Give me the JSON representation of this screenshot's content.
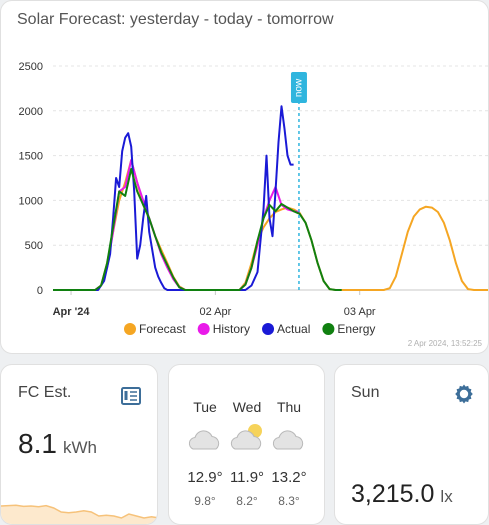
{
  "solar_card": {
    "title": "Solar Forecast: yesterday - today - tomorrow",
    "updated": "2 Apr 2024, 13:52:25",
    "now_label": "now"
  },
  "fc_card": {
    "title": "FC Est.",
    "icon": "calendar-grid-icon",
    "value": "8.1",
    "unit": "kWh",
    "trend": [
      0.45,
      0.46,
      0.47,
      0.44,
      0.45,
      0.43,
      0.46,
      0.4,
      0.3,
      0.28,
      0.3,
      0.33,
      0.3,
      0.2,
      0.22,
      0.2,
      0.15,
      0.25,
      0.2,
      0.15,
      0.18,
      0.15
    ]
  },
  "weather_card": {
    "days": [
      {
        "day": "Tue",
        "icon": "cloudy-icon",
        "high": "12.9°",
        "low": "9.8°"
      },
      {
        "day": "Wed",
        "icon": "partly-cloudy-icon",
        "high": "11.9°",
        "low": "8.2°"
      },
      {
        "day": "Thu",
        "icon": "cloudy-icon",
        "high": "13.2°",
        "low": "8.3°"
      }
    ]
  },
  "sun_card": {
    "title": "Sun",
    "icon": "gear-icon",
    "value": "3,215.0",
    "unit": "lx"
  },
  "chart_data": {
    "type": "line",
    "title": "Solar Forecast: yesterday - today - tomorrow",
    "x_unit": "hours since 1 Apr 2024 00:00",
    "x_ticks": [
      {
        "label": "Apr '24",
        "x": 0,
        "bold": true
      },
      {
        "label": "02 Apr",
        "x": 24,
        "bold": false
      },
      {
        "label": "03 Apr",
        "x": 48,
        "bold": false
      }
    ],
    "xlim": [
      -3,
      69.5
    ],
    "ylim": [
      0,
      2500
    ],
    "y_ticks": [
      0,
      500,
      1000,
      1500,
      2000,
      2500
    ],
    "now_x": 37.9,
    "grid": true,
    "legend_position": "bottom",
    "series": [
      {
        "name": "Forecast",
        "color": "#f5a623",
        "x": [
          -3,
          4,
          5,
          6,
          7,
          8,
          9,
          10,
          11,
          12,
          13,
          14,
          15,
          16,
          17,
          18,
          19,
          20,
          28,
          29,
          30,
          31,
          32,
          33,
          34,
          35,
          36,
          37,
          38,
          39,
          40,
          41,
          42,
          43,
          44,
          52,
          53,
          54,
          55,
          56,
          57,
          58,
          59,
          60,
          61,
          62,
          63,
          64,
          65,
          66,
          67,
          68,
          69.5
        ],
        "y": [
          0,
          0,
          50,
          300,
          650,
          1000,
          1200,
          1450,
          1200,
          950,
          800,
          600,
          450,
          300,
          150,
          40,
          0,
          0,
          0,
          80,
          300,
          550,
          700,
          800,
          870,
          900,
          920,
          900,
          860,
          750,
          550,
          300,
          100,
          10,
          0,
          0,
          20,
          150,
          400,
          650,
          820,
          900,
          930,
          920,
          870,
          750,
          550,
          300,
          100,
          10,
          0,
          0,
          0
        ]
      },
      {
        "name": "History",
        "color": "#e91ae9",
        "x": [
          -3,
          4,
          5,
          6,
          7,
          8,
          9,
          10,
          11,
          12,
          13,
          14,
          15,
          16,
          17,
          18,
          19,
          20,
          28,
          29,
          30,
          31,
          32,
          33,
          34,
          35,
          36,
          37,
          38
        ],
        "y": [
          0,
          0,
          50,
          250,
          650,
          1100,
          1150,
          1450,
          1200,
          1000,
          800,
          600,
          400,
          250,
          120,
          30,
          0,
          0,
          0,
          60,
          250,
          500,
          800,
          1000,
          1150,
          950,
          900,
          880,
          870
        ]
      },
      {
        "name": "Actual",
        "color": "#1a1ad6",
        "x": [
          -3,
          4.5,
          5.5,
          6.5,
          7,
          7.5,
          8,
          8.5,
          9,
          9.5,
          10,
          10.5,
          11,
          11.5,
          12,
          12.5,
          13,
          13.5,
          14,
          14.5,
          15,
          15.5,
          16,
          17,
          18,
          19,
          20,
          29,
          30,
          31,
          32,
          32.5,
          33,
          33.5,
          34,
          34.5,
          35,
          35.5,
          36,
          36.5,
          37
        ],
        "y": [
          0,
          0,
          100,
          400,
          800,
          1250,
          1150,
          1550,
          1700,
          1750,
          1600,
          1100,
          350,
          500,
          800,
          1050,
          650,
          450,
          250,
          150,
          80,
          20,
          0,
          0,
          0,
          0,
          0,
          0,
          50,
          200,
          900,
          1500,
          800,
          600,
          1100,
          1650,
          2050,
          1800,
          1500,
          1400,
          1400
        ]
      },
      {
        "name": "Energy",
        "color": "#108010",
        "x": [
          -3,
          4,
          5,
          6,
          7,
          8,
          9,
          10,
          11,
          12,
          13,
          14,
          15,
          16,
          17,
          18,
          19,
          20,
          28,
          29,
          30,
          31,
          32,
          33,
          34,
          35,
          36,
          37,
          38,
          39,
          40,
          41,
          42,
          43,
          44,
          45
        ],
        "y": [
          0,
          0,
          50,
          300,
          700,
          1100,
          1050,
          1350,
          1100,
          950,
          800,
          600,
          420,
          280,
          140,
          30,
          0,
          0,
          0,
          60,
          250,
          550,
          800,
          950,
          880,
          960,
          920,
          880,
          850,
          750,
          550,
          300,
          100,
          10,
          0,
          0
        ]
      }
    ]
  }
}
